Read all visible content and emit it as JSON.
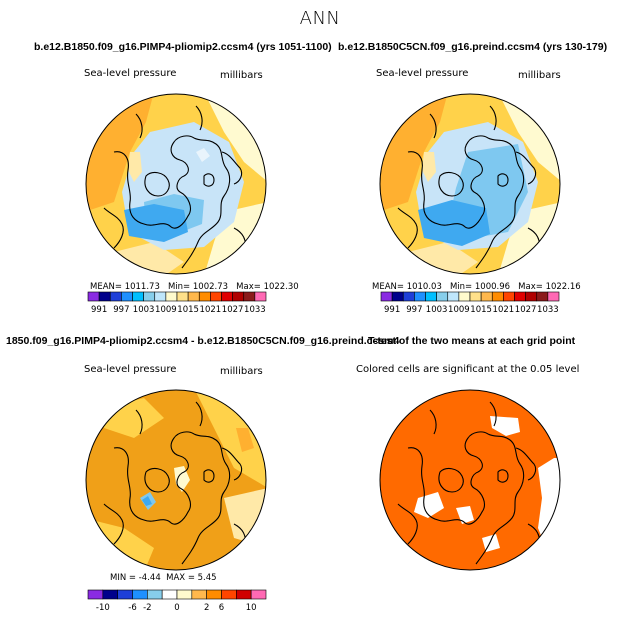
{
  "page_title": "ANN",
  "panels": [
    {
      "title": "b.e12.B1850.f09_g16.PIMP4-pliomip2.ccsm4 (yrs 1051-1100)",
      "variable": "Sea-level pressure",
      "units": "millibars",
      "mean_label": "MEAN=",
      "mean_value": "1011.73",
      "min_label": "Min=",
      "min_value": "1002.73",
      "max_label": "Max=",
      "max_value": "1022.30"
    },
    {
      "title": "b.e12.B1850C5CN.f09_g16.preind.ccsm4 (yrs 130-179)",
      "variable": "Sea-level pressure",
      "units": "millibars",
      "mean_label": "MEAN=",
      "mean_value": "1010.03",
      "min_label": "Min=",
      "min_value": "1000.96",
      "max_label": "Max=",
      "max_value": "1022.16"
    },
    {
      "title": "1850.f09_g16.PIMP4-pliomip2.ccsm4 - b.e12.B1850C5CN.f09_g16.preind.ccsm4",
      "variable": "Sea-level pressure",
      "units": "millibars",
      "min_label": "MIN =",
      "min_value": "-4.44",
      "max_label": "MAX =",
      "max_value": "5.45"
    },
    {
      "title": "T-test of the two means at each grid point",
      "note": "Colored cells are significant at the 0.05 level"
    }
  ],
  "colorbar_abs": {
    "labels": [
      "991",
      "997",
      "1003",
      "1009",
      "1015",
      "1021",
      "1027",
      "1033"
    ],
    "colors": [
      "#8a2be2",
      "#00008b",
      "#1e3fd8",
      "#1e90ff",
      "#00bfff",
      "#87ceeb",
      "#bfe6fb",
      "#fffacd",
      "#ffe08a",
      "#ffb84d",
      "#ff8c00",
      "#ff4500",
      "#e00000",
      "#b00000",
      "#8b1a1a",
      "#ff69b4"
    ]
  },
  "colorbar_diff": {
    "labels": [
      "-10",
      "-6",
      "-2",
      "0",
      "2",
      "6",
      "10"
    ],
    "colors": [
      "#8a2be2",
      "#00008b",
      "#1e3fd8",
      "#1e90ff",
      "#87ceeb",
      "#ffffff",
      "#fffacd",
      "#ffb84d",
      "#ff8c00",
      "#ff4500",
      "#d00000",
      "#ff69b4"
    ]
  },
  "map_colors": {
    "cream": "#fffad0",
    "pale_yellow": "#ffe9a8",
    "yellow": "#ffd24a",
    "orange_light": "#ffb030",
    "orange": "#f0a018",
    "light_blue": "#c8e4f8",
    "mid_blue": "#7ec8f0",
    "blue": "#3fa9f0",
    "ttest_orange": "#ff6a00"
  }
}
